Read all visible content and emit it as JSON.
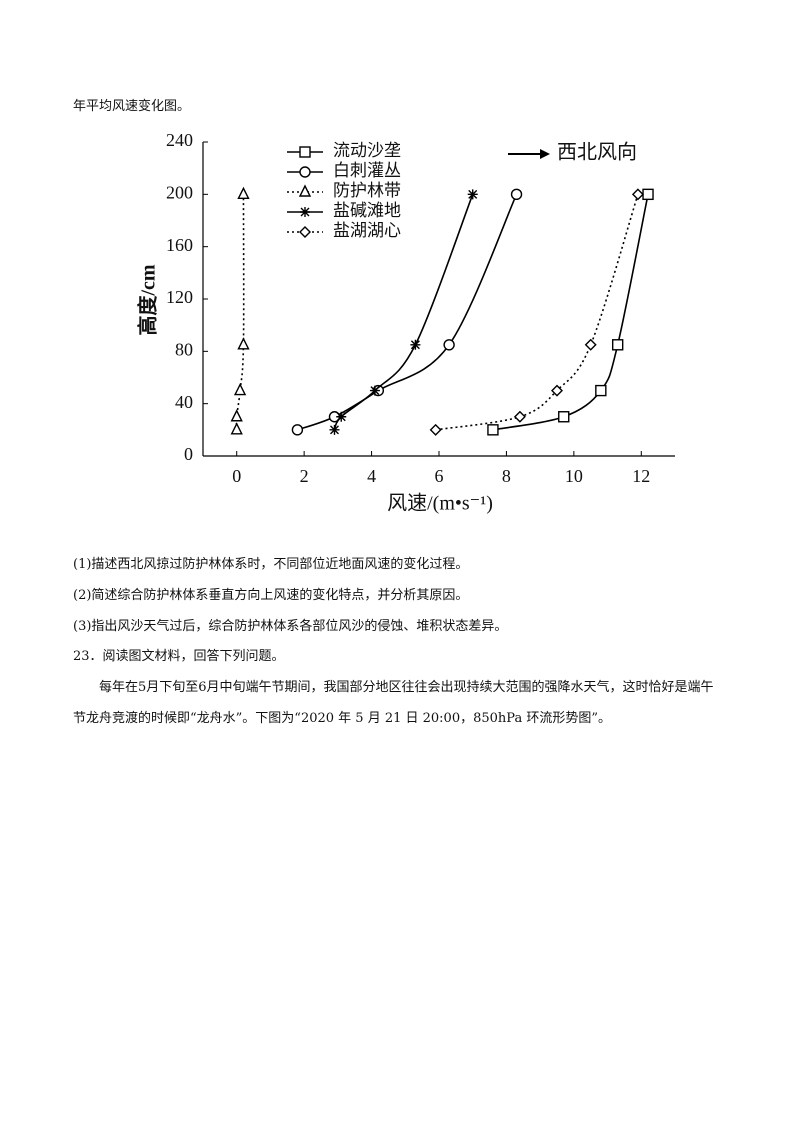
{
  "caption": "年平均风速变化图。",
  "chart_data": {
    "type": "line",
    "xlabel": "风速/(m•s⁻¹)",
    "ylabel": "高度/cm",
    "annotation": "西北风向",
    "xlim": [
      -1,
      13
    ],
    "xticks": [
      0,
      2,
      4,
      6,
      8,
      10,
      12
    ],
    "ylim": [
      0,
      240
    ],
    "yticks": [
      0,
      40,
      80,
      120,
      160,
      200,
      240
    ],
    "legend": "upper left",
    "series": [
      {
        "name": "流动沙垄",
        "color": "#000000",
        "linestyle": "solid",
        "marker": "square",
        "x": [
          7.6,
          9.7,
          10.8,
          11.3,
          12.2
        ],
        "values": [
          20,
          30,
          50,
          85,
          200
        ]
      },
      {
        "name": "白刺灌丛",
        "color": "#000000",
        "linestyle": "solid",
        "marker": "circle",
        "x": [
          1.8,
          2.9,
          4.2,
          6.3,
          8.3
        ],
        "values": [
          20,
          30,
          50,
          85,
          200
        ]
      },
      {
        "name": "防护林带",
        "color": "#000000",
        "linestyle": "dotted",
        "marker": "triangle",
        "x": [
          0,
          0,
          0.1,
          0.2,
          0.2
        ],
        "values": [
          20,
          30,
          50,
          85,
          200
        ]
      },
      {
        "name": "盐碱滩地",
        "color": "#000000",
        "linestyle": "solid",
        "marker": "asterisk",
        "x": [
          2.9,
          3.1,
          4.1,
          5.3,
          7.0
        ],
        "values": [
          20,
          30,
          50,
          85,
          200
        ]
      },
      {
        "name": "盐湖湖心",
        "color": "#000000",
        "linestyle": "dotted",
        "marker": "diamond",
        "x": [
          5.9,
          8.4,
          9.5,
          10.5,
          11.9
        ],
        "values": [
          20,
          30,
          50,
          85,
          200
        ]
      }
    ]
  },
  "questions": [
    "(1)描述西北风掠过防护林体系时，不同部位近地面风速的变化过程。",
    "(2)简述综合防护林体系垂直方向上风速的变化特点，并分析其原因。",
    "(3)指出风沙天气过后，综合防护林体系各部位风沙的侵蚀、堆积状态差异。"
  ],
  "section": "23．阅读图文材料，回答下列问题。",
  "paragraph": "每年在5月下旬至6月中旬端午节期间，我国部分地区往往会出现持续大范围的强降水天气，这时恰好是端午节龙舟竞渡的时候即“龙舟水”。下图为“2020 年 5 月 21 日 20:00，850hPa 环流形势图”。"
}
